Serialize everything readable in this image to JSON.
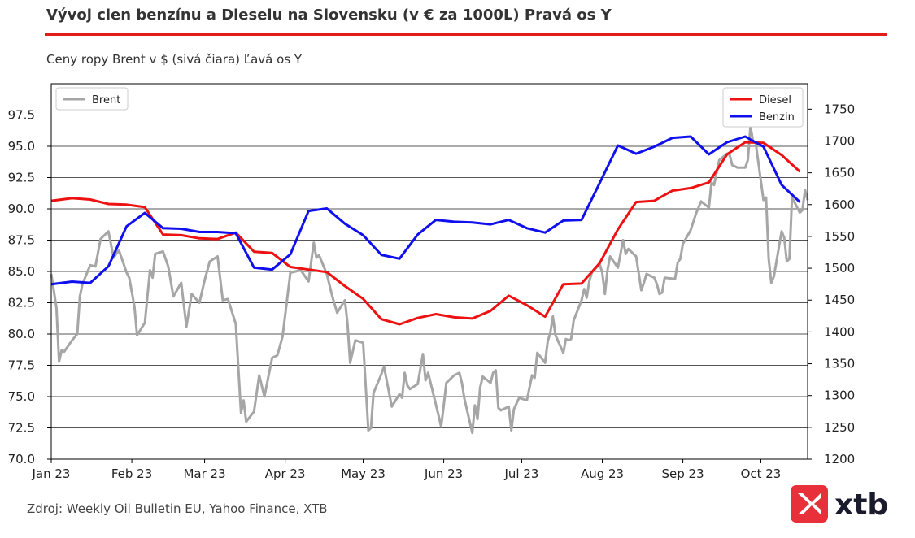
{
  "header": {
    "title": "Vývoj cien benzínu a Dieselu na Slovensku (v € za 1000L) Pravá os Y",
    "subtitle": "Ceny ropy Brent v $ (sivá čiara) Ľavá os Y"
  },
  "footer": {
    "source": "Zdroj: Weekly Oil Bulletin EU, Yahoo Finance, XTB",
    "logo_text": "xtb"
  },
  "colors": {
    "accent_rule": "#e31b1b",
    "brent": "#a6a6a6",
    "diesel": "#ee1111",
    "benzin": "#1010ee",
    "logo_red": "#e8303a"
  },
  "chart_data": {
    "type": "line",
    "x_tick_labels": [
      "Jan 23",
      "Feb 23",
      "Mar 23",
      "Apr 23",
      "May 23",
      "Jun 23",
      "Jul 23",
      "Aug 23",
      "Sep 23",
      "Oct 23"
    ],
    "x_tick_dates": [
      "2023-01-01",
      "2023-02-01",
      "2023-03-01",
      "2023-04-01",
      "2023-05-01",
      "2023-06-01",
      "2023-07-01",
      "2023-08-01",
      "2023-09-01",
      "2023-10-01"
    ],
    "xlim": [
      "2023-01-01",
      "2023-10-19"
    ],
    "left_axis": {
      "ylim": [
        70.0,
        100.0
      ],
      "ticks": [
        "70.0",
        "72.5",
        "75.0",
        "77.5",
        "80.0",
        "82.5",
        "85.0",
        "87.5",
        "90.0",
        "92.5",
        "95.0",
        "97.5"
      ]
    },
    "right_axis": {
      "ylim": [
        1200,
        1790
      ],
      "ticks": [
        "1200",
        "1250",
        "1300",
        "1350",
        "1400",
        "1450",
        "1500",
        "1550",
        "1600",
        "1650",
        "1700",
        "1750"
      ]
    },
    "grid": "horizontal",
    "legends": {
      "left": "top-left",
      "right": "top-right"
    },
    "series": [
      {
        "name": "Brent",
        "axis": "left",
        "points": [
          [
            "2023-01-01",
            84.8
          ],
          [
            "2023-01-03",
            82.1
          ],
          [
            "2023-01-04",
            77.8
          ],
          [
            "2023-01-05",
            78.7
          ],
          [
            "2023-01-06",
            78.6
          ],
          [
            "2023-01-09",
            79.5
          ],
          [
            "2023-01-11",
            80.0
          ],
          [
            "2023-01-12",
            83.0
          ],
          [
            "2023-01-13",
            84.0
          ],
          [
            "2023-01-16",
            85.5
          ],
          [
            "2023-01-18",
            85.4
          ],
          [
            "2023-01-20",
            87.6
          ],
          [
            "2023-01-23",
            88.2
          ],
          [
            "2023-01-25",
            86.1
          ],
          [
            "2023-01-27",
            86.7
          ],
          [
            "2023-01-30",
            84.9
          ],
          [
            "2023-01-31",
            84.5
          ],
          [
            "2023-02-02",
            82.2
          ],
          [
            "2023-02-03",
            79.9
          ],
          [
            "2023-02-06",
            80.9
          ],
          [
            "2023-02-08",
            85.1
          ],
          [
            "2023-02-09",
            84.5
          ],
          [
            "2023-02-10",
            86.4
          ],
          [
            "2023-02-13",
            86.6
          ],
          [
            "2023-02-15",
            85.4
          ],
          [
            "2023-02-17",
            83.0
          ],
          [
            "2023-02-20",
            84.1
          ],
          [
            "2023-02-22",
            80.6
          ],
          [
            "2023-02-24",
            83.2
          ],
          [
            "2023-02-27",
            82.5
          ],
          [
            "2023-03-01",
            84.3
          ],
          [
            "2023-03-03",
            85.8
          ],
          [
            "2023-03-06",
            86.2
          ],
          [
            "2023-03-08",
            82.7
          ],
          [
            "2023-03-10",
            82.8
          ],
          [
            "2023-03-13",
            80.8
          ],
          [
            "2023-03-15",
            73.7
          ],
          [
            "2023-03-16",
            74.7
          ],
          [
            "2023-03-17",
            73.0
          ],
          [
            "2023-03-20",
            73.8
          ],
          [
            "2023-03-22",
            76.7
          ],
          [
            "2023-03-24",
            75.0
          ],
          [
            "2023-03-27",
            78.1
          ],
          [
            "2023-03-29",
            78.3
          ],
          [
            "2023-03-31",
            79.8
          ],
          [
            "2023-04-03",
            84.9
          ],
          [
            "2023-04-05",
            85.0
          ],
          [
            "2023-04-07",
            85.1
          ],
          [
            "2023-04-10",
            84.2
          ],
          [
            "2023-04-12",
            87.3
          ],
          [
            "2023-04-13",
            86.1
          ],
          [
            "2023-04-14",
            86.3
          ],
          [
            "2023-04-17",
            84.8
          ],
          [
            "2023-04-19",
            83.1
          ],
          [
            "2023-04-21",
            81.7
          ],
          [
            "2023-04-24",
            82.7
          ],
          [
            "2023-04-25",
            80.8
          ],
          [
            "2023-04-26",
            77.7
          ],
          [
            "2023-04-28",
            79.5
          ],
          [
            "2023-05-01",
            79.3
          ],
          [
            "2023-05-03",
            72.3
          ],
          [
            "2023-05-04",
            72.5
          ],
          [
            "2023-05-05",
            75.3
          ],
          [
            "2023-05-08",
            76.8
          ],
          [
            "2023-05-09",
            77.4
          ],
          [
            "2023-05-12",
            74.2
          ],
          [
            "2023-05-15",
            75.2
          ],
          [
            "2023-05-16",
            74.9
          ],
          [
            "2023-05-17",
            76.9
          ],
          [
            "2023-05-18",
            75.9
          ],
          [
            "2023-05-19",
            75.6
          ],
          [
            "2023-05-22",
            76.0
          ],
          [
            "2023-05-24",
            78.4
          ],
          [
            "2023-05-25",
            76.3
          ],
          [
            "2023-05-26",
            76.9
          ],
          [
            "2023-05-30",
            73.5
          ],
          [
            "2023-05-31",
            72.6
          ],
          [
            "2023-06-01",
            74.3
          ],
          [
            "2023-06-02",
            76.1
          ],
          [
            "2023-06-05",
            76.7
          ],
          [
            "2023-06-07",
            76.9
          ],
          [
            "2023-06-08",
            76.1
          ],
          [
            "2023-06-09",
            74.8
          ],
          [
            "2023-06-12",
            72.1
          ],
          [
            "2023-06-13",
            74.3
          ],
          [
            "2023-06-14",
            73.2
          ],
          [
            "2023-06-15",
            75.7
          ],
          [
            "2023-06-16",
            76.6
          ],
          [
            "2023-06-19",
            76.1
          ],
          [
            "2023-06-20",
            76.9
          ],
          [
            "2023-06-21",
            77.1
          ],
          [
            "2023-06-22",
            74.1
          ],
          [
            "2023-06-23",
            73.9
          ],
          [
            "2023-06-26",
            74.2
          ],
          [
            "2023-06-27",
            72.3
          ],
          [
            "2023-06-28",
            74.0
          ],
          [
            "2023-06-30",
            74.9
          ],
          [
            "2023-07-03",
            74.7
          ],
          [
            "2023-07-05",
            76.7
          ],
          [
            "2023-07-06",
            76.5
          ],
          [
            "2023-07-07",
            78.5
          ],
          [
            "2023-07-10",
            77.7
          ],
          [
            "2023-07-11",
            79.4
          ],
          [
            "2023-07-12",
            80.1
          ],
          [
            "2023-07-13",
            81.4
          ],
          [
            "2023-07-14",
            79.9
          ],
          [
            "2023-07-17",
            78.5
          ],
          [
            "2023-07-18",
            79.6
          ],
          [
            "2023-07-19",
            79.5
          ],
          [
            "2023-07-20",
            79.6
          ],
          [
            "2023-07-21",
            81.1
          ],
          [
            "2023-07-24",
            82.7
          ],
          [
            "2023-07-25",
            83.6
          ],
          [
            "2023-07-26",
            82.9
          ],
          [
            "2023-07-27",
            84.2
          ],
          [
            "2023-07-28",
            84.9
          ],
          [
            "2023-07-31",
            85.6
          ],
          [
            "2023-08-01",
            84.9
          ],
          [
            "2023-08-02",
            83.2
          ],
          [
            "2023-08-03",
            85.1
          ],
          [
            "2023-08-04",
            86.2
          ],
          [
            "2023-08-07",
            85.3
          ],
          [
            "2023-08-09",
            87.5
          ],
          [
            "2023-08-10",
            86.4
          ],
          [
            "2023-08-11",
            86.8
          ],
          [
            "2023-08-14",
            86.2
          ],
          [
            "2023-08-16",
            83.5
          ],
          [
            "2023-08-17",
            84.1
          ],
          [
            "2023-08-18",
            84.8
          ],
          [
            "2023-08-21",
            84.5
          ],
          [
            "2023-08-22",
            84.0
          ],
          [
            "2023-08-23",
            83.2
          ],
          [
            "2023-08-24",
            83.3
          ],
          [
            "2023-08-25",
            84.5
          ],
          [
            "2023-08-29",
            84.4
          ],
          [
            "2023-08-30",
            85.7
          ],
          [
            "2023-08-31",
            86.0
          ],
          [
            "2023-09-01",
            87.2
          ],
          [
            "2023-09-04",
            88.3
          ],
          [
            "2023-09-06",
            89.6
          ],
          [
            "2023-09-08",
            90.6
          ],
          [
            "2023-09-11",
            90.1
          ],
          [
            "2023-09-12",
            92.1
          ],
          [
            "2023-09-13",
            91.9
          ],
          [
            "2023-09-15",
            93.9
          ],
          [
            "2023-09-18",
            94.4
          ],
          [
            "2023-09-19",
            94.3
          ],
          [
            "2023-09-20",
            93.5
          ],
          [
            "2023-09-22",
            93.3
          ],
          [
            "2023-09-25",
            93.3
          ],
          [
            "2023-09-26",
            93.9
          ],
          [
            "2023-09-27",
            96.6
          ],
          [
            "2023-09-28",
            95.4
          ],
          [
            "2023-09-29",
            95.3
          ],
          [
            "2023-10-02",
            90.7
          ],
          [
            "2023-10-03",
            90.9
          ],
          [
            "2023-10-04",
            86.0
          ],
          [
            "2023-10-05",
            84.1
          ],
          [
            "2023-10-06",
            84.6
          ],
          [
            "2023-10-09",
            88.2
          ],
          [
            "2023-10-10",
            87.7
          ],
          [
            "2023-10-11",
            85.8
          ],
          [
            "2023-10-12",
            86.0
          ],
          [
            "2023-10-13",
            90.9
          ],
          [
            "2023-10-16",
            89.7
          ],
          [
            "2023-10-17",
            89.9
          ],
          [
            "2023-10-18",
            91.5
          ],
          [
            "2023-10-19",
            90.7
          ]
        ]
      },
      {
        "name": "Diesel",
        "axis": "right",
        "points": [
          [
            "2023-01-01",
            1606
          ],
          [
            "2023-01-09",
            1610
          ],
          [
            "2023-01-16",
            1608
          ],
          [
            "2023-01-23",
            1601
          ],
          [
            "2023-01-30",
            1600
          ],
          [
            "2023-02-06",
            1596
          ],
          [
            "2023-02-13",
            1553
          ],
          [
            "2023-02-20",
            1552
          ],
          [
            "2023-02-27",
            1547
          ],
          [
            "2023-03-06",
            1546
          ],
          [
            "2023-03-13",
            1556
          ],
          [
            "2023-03-20",
            1526
          ],
          [
            "2023-03-27",
            1524
          ],
          [
            "2023-04-03",
            1502
          ],
          [
            "2023-04-10",
            1498
          ],
          [
            "2023-04-17",
            1494
          ],
          [
            "2023-04-24",
            1472
          ],
          [
            "2023-05-01",
            1452
          ],
          [
            "2023-05-08",
            1420
          ],
          [
            "2023-05-15",
            1412
          ],
          [
            "2023-05-22",
            1422
          ],
          [
            "2023-05-29",
            1428
          ],
          [
            "2023-06-05",
            1423
          ],
          [
            "2023-06-12",
            1421
          ],
          [
            "2023-06-19",
            1433
          ],
          [
            "2023-06-26",
            1457
          ],
          [
            "2023-07-03",
            1442
          ],
          [
            "2023-07-10",
            1424
          ],
          [
            "2023-07-17",
            1475
          ],
          [
            "2023-07-24",
            1476
          ],
          [
            "2023-07-31",
            1508
          ],
          [
            "2023-08-07",
            1561
          ],
          [
            "2023-08-14",
            1604
          ],
          [
            "2023-08-21",
            1606
          ],
          [
            "2023-08-28",
            1622
          ],
          [
            "2023-09-04",
            1626
          ],
          [
            "2023-09-11",
            1635
          ],
          [
            "2023-09-18",
            1679
          ],
          [
            "2023-09-25",
            1698
          ],
          [
            "2023-10-02",
            1697
          ],
          [
            "2023-10-09",
            1678
          ],
          [
            "2023-10-16",
            1652
          ]
        ]
      },
      {
        "name": "Benzin",
        "axis": "right",
        "points": [
          [
            "2023-01-01",
            1475
          ],
          [
            "2023-01-09",
            1479
          ],
          [
            "2023-01-16",
            1477
          ],
          [
            "2023-01-23",
            1503
          ],
          [
            "2023-01-30",
            1566
          ],
          [
            "2023-02-06",
            1587
          ],
          [
            "2023-02-13",
            1563
          ],
          [
            "2023-02-20",
            1562
          ],
          [
            "2023-02-27",
            1557
          ],
          [
            "2023-03-06",
            1557
          ],
          [
            "2023-03-13",
            1555
          ],
          [
            "2023-03-20",
            1501
          ],
          [
            "2023-03-27",
            1498
          ],
          [
            "2023-04-03",
            1522
          ],
          [
            "2023-04-10",
            1590
          ],
          [
            "2023-04-17",
            1594
          ],
          [
            "2023-04-24",
            1570
          ],
          [
            "2023-05-01",
            1552
          ],
          [
            "2023-05-08",
            1521
          ],
          [
            "2023-05-15",
            1515
          ],
          [
            "2023-05-22",
            1553
          ],
          [
            "2023-05-29",
            1576
          ],
          [
            "2023-06-05",
            1573
          ],
          [
            "2023-06-12",
            1572
          ],
          [
            "2023-06-19",
            1569
          ],
          [
            "2023-06-26",
            1576
          ],
          [
            "2023-07-03",
            1563
          ],
          [
            "2023-07-10",
            1556
          ],
          [
            "2023-07-17",
            1575
          ],
          [
            "2023-07-24",
            1576
          ],
          [
            "2023-07-31",
            1634
          ],
          [
            "2023-08-07",
            1693
          ],
          [
            "2023-08-14",
            1680
          ],
          [
            "2023-08-21",
            1691
          ],
          [
            "2023-08-28",
            1705
          ],
          [
            "2023-09-04",
            1707
          ],
          [
            "2023-09-11",
            1679
          ],
          [
            "2023-09-18",
            1698
          ],
          [
            "2023-09-25",
            1707
          ],
          [
            "2023-10-02",
            1691
          ],
          [
            "2023-10-09",
            1631
          ],
          [
            "2023-10-16",
            1604
          ]
        ]
      }
    ]
  }
}
